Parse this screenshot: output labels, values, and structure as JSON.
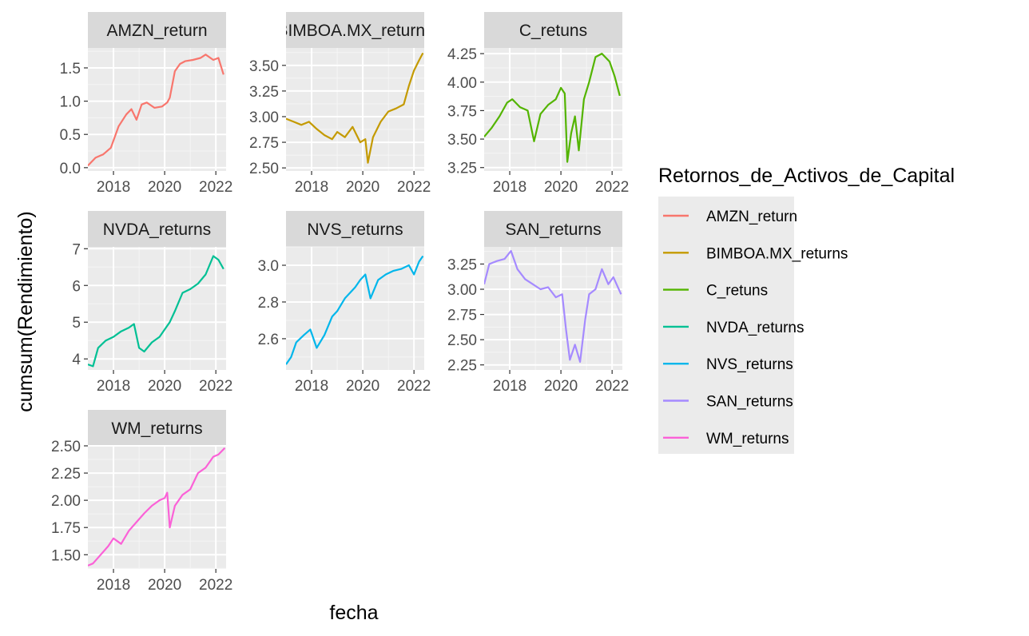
{
  "chart_data": {
    "type": "line",
    "xlabel": "fecha",
    "ylabel": "cumsum(Rendimiento)",
    "xlim": [
      2017.0,
      2022.4
    ],
    "x_ticks": [
      2018,
      2020,
      2022
    ],
    "x_tick_labels": [
      "2018",
      "2020",
      "2022"
    ],
    "grid": true,
    "legend": {
      "title": "Retornos_de_Activos_de_Capital",
      "placement": "right",
      "entries": [
        "AMZN_return",
        "BIMBOA.MX_returns",
        "C_retuns",
        "NVDA_returns",
        "NVS_returns",
        "SAN_returns",
        "WM_returns"
      ]
    },
    "panels": [
      {
        "name": "AMZN_return",
        "strip_label": "AMZN_return",
        "color": "#F8766D",
        "ylim": [
          -0.05,
          1.8
        ],
        "y_ticks": [
          0.0,
          0.5,
          1.0,
          1.5
        ],
        "y_tick_labels": [
          "0.0",
          "0.5",
          "1.0",
          "1.5"
        ],
        "x": [
          2017.0,
          2017.3,
          2017.6,
          2017.9,
          2018.2,
          2018.5,
          2018.7,
          2018.9,
          2019.1,
          2019.3,
          2019.6,
          2019.9,
          2020.1,
          2020.2,
          2020.4,
          2020.6,
          2020.8,
          2021.1,
          2021.4,
          2021.6,
          2021.9,
          2022.1,
          2022.3
        ],
        "y": [
          0.03,
          0.15,
          0.2,
          0.3,
          0.62,
          0.8,
          0.88,
          0.72,
          0.95,
          0.98,
          0.9,
          0.92,
          0.98,
          1.05,
          1.45,
          1.56,
          1.6,
          1.62,
          1.65,
          1.7,
          1.62,
          1.65,
          1.4
        ]
      },
      {
        "name": "BIMBOA.MX_returns",
        "strip_label": "BIMBOA.MX_returns",
        "color": "#C49A00",
        "ylim": [
          2.47,
          3.67
        ],
        "y_ticks": [
          2.5,
          2.75,
          3.0,
          3.25,
          3.5
        ],
        "y_tick_labels": [
          "2.50",
          "2.75",
          "3.00",
          "3.25",
          "3.50"
        ],
        "x": [
          2017.0,
          2017.3,
          2017.6,
          2017.9,
          2018.2,
          2018.5,
          2018.8,
          2019.0,
          2019.3,
          2019.6,
          2019.9,
          2020.1,
          2020.2,
          2020.4,
          2020.7,
          2021.0,
          2021.3,
          2021.6,
          2021.8,
          2022.0,
          2022.2,
          2022.35
        ],
        "y": [
          2.98,
          2.95,
          2.92,
          2.95,
          2.88,
          2.82,
          2.78,
          2.85,
          2.8,
          2.9,
          2.75,
          2.78,
          2.55,
          2.8,
          2.95,
          3.05,
          3.08,
          3.12,
          3.3,
          3.45,
          3.55,
          3.62
        ]
      },
      {
        "name": "C_retuns",
        "strip_label": "C_retuns",
        "color": "#53B400",
        "ylim": [
          3.22,
          4.3
        ],
        "y_ticks": [
          3.25,
          3.5,
          3.75,
          4.0,
          4.25
        ],
        "y_tick_labels": [
          "3.25",
          "3.50",
          "3.75",
          "4.00",
          "4.25"
        ],
        "x": [
          2017.0,
          2017.3,
          2017.6,
          2017.9,
          2018.1,
          2018.4,
          2018.7,
          2018.95,
          2019.2,
          2019.5,
          2019.8,
          2020.0,
          2020.15,
          2020.25,
          2020.4,
          2020.55,
          2020.7,
          2020.9,
          2021.1,
          2021.35,
          2021.6,
          2021.9,
          2022.1,
          2022.3
        ],
        "y": [
          3.52,
          3.6,
          3.7,
          3.82,
          3.85,
          3.78,
          3.75,
          3.48,
          3.72,
          3.8,
          3.85,
          3.95,
          3.9,
          3.3,
          3.55,
          3.7,
          3.4,
          3.85,
          4.0,
          4.22,
          4.25,
          4.18,
          4.05,
          3.88
        ]
      },
      {
        "name": "NVDA_returns",
        "strip_label": "NVDA_returns",
        "color": "#00C094",
        "ylim": [
          3.7,
          7.05
        ],
        "y_ticks": [
          4,
          5,
          6,
          7
        ],
        "y_tick_labels": [
          "4",
          "5",
          "6",
          "7"
        ],
        "x": [
          2017.0,
          2017.2,
          2017.4,
          2017.7,
          2018.0,
          2018.3,
          2018.6,
          2018.8,
          2019.0,
          2019.2,
          2019.5,
          2019.8,
          2020.0,
          2020.2,
          2020.4,
          2020.7,
          2021.0,
          2021.3,
          2021.6,
          2021.9,
          2022.1,
          2022.3
        ],
        "y": [
          3.85,
          3.8,
          4.3,
          4.5,
          4.6,
          4.75,
          4.85,
          4.95,
          4.3,
          4.2,
          4.45,
          4.6,
          4.8,
          5.0,
          5.3,
          5.8,
          5.9,
          6.05,
          6.3,
          6.8,
          6.7,
          6.45
        ]
      },
      {
        "name": "NVS_returns",
        "strip_label": "NVS_returns",
        "color": "#00B6EB",
        "ylim": [
          2.43,
          3.1
        ],
        "y_ticks": [
          2.6,
          2.8,
          3.0
        ],
        "y_tick_labels": [
          "2.6",
          "2.8",
          "3.0"
        ],
        "x": [
          2017.0,
          2017.2,
          2017.4,
          2017.7,
          2017.95,
          2018.2,
          2018.5,
          2018.8,
          2019.0,
          2019.3,
          2019.5,
          2019.7,
          2019.9,
          2020.1,
          2020.3,
          2020.6,
          2020.9,
          2021.2,
          2021.5,
          2021.8,
          2022.0,
          2022.2,
          2022.35
        ],
        "y": [
          2.46,
          2.5,
          2.58,
          2.62,
          2.65,
          2.55,
          2.62,
          2.72,
          2.75,
          2.82,
          2.85,
          2.88,
          2.92,
          2.95,
          2.82,
          2.92,
          2.95,
          2.97,
          2.98,
          3.0,
          2.95,
          3.02,
          3.05
        ]
      },
      {
        "name": "SAN_returns",
        "strip_label": "SAN_returns",
        "color": "#A58AFF",
        "ylim": [
          2.2,
          3.42
        ],
        "y_ticks": [
          2.25,
          2.5,
          2.75,
          3.0,
          3.25
        ],
        "y_tick_labels": [
          "2.25",
          "2.50",
          "2.75",
          "3.00",
          "3.25"
        ],
        "x": [
          2017.0,
          2017.2,
          2017.5,
          2017.8,
          2018.05,
          2018.3,
          2018.6,
          2018.9,
          2019.2,
          2019.5,
          2019.8,
          2020.05,
          2020.2,
          2020.35,
          2020.55,
          2020.75,
          2020.95,
          2021.1,
          2021.35,
          2021.6,
          2021.85,
          2022.05,
          2022.35
        ],
        "y": [
          3.05,
          3.25,
          3.28,
          3.3,
          3.38,
          3.2,
          3.1,
          3.05,
          3.0,
          3.02,
          2.92,
          2.95,
          2.6,
          2.3,
          2.45,
          2.28,
          2.7,
          2.95,
          3.0,
          3.2,
          3.05,
          3.12,
          2.95
        ]
      },
      {
        "name": "WM_returns",
        "strip_label": "WM_returns",
        "color": "#FB61D7",
        "ylim": [
          1.37,
          2.5
        ],
        "y_ticks": [
          1.5,
          1.75,
          2.0,
          2.25,
          2.5
        ],
        "y_tick_labels": [
          "1.50",
          "1.75",
          "2.00",
          "2.25",
          "2.50"
        ],
        "x": [
          2017.0,
          2017.2,
          2017.5,
          2017.8,
          2018.0,
          2018.3,
          2018.6,
          2018.9,
          2019.2,
          2019.5,
          2019.8,
          2020.0,
          2020.1,
          2020.2,
          2020.4,
          2020.7,
          2021.0,
          2021.3,
          2021.6,
          2021.9,
          2022.1,
          2022.35
        ],
        "y": [
          1.4,
          1.42,
          1.5,
          1.58,
          1.65,
          1.6,
          1.72,
          1.8,
          1.88,
          1.95,
          2.0,
          2.02,
          2.07,
          1.75,
          1.95,
          2.05,
          2.1,
          2.25,
          2.3,
          2.4,
          2.42,
          2.48
        ]
      }
    ]
  }
}
